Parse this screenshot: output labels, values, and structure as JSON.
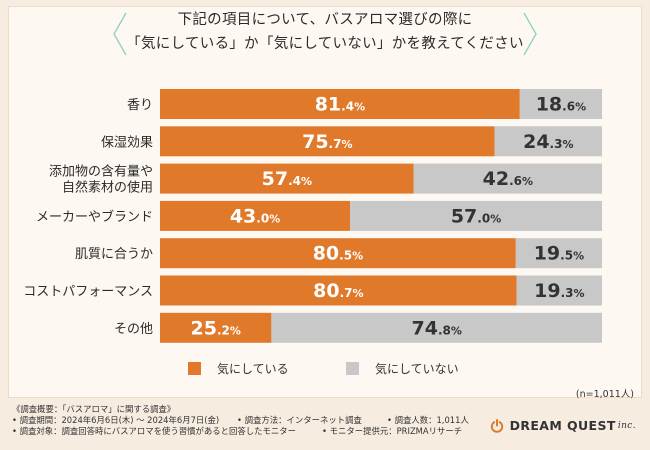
{
  "title": {
    "line1": "下記の項目について、バスアロマ選びの際に",
    "line2": "「気にしている」か「気にしていない」かを教えてください"
  },
  "chart_data": {
    "type": "bar",
    "orientation": "horizontal",
    "stacked": true,
    "unit": "%",
    "categories": [
      [
        "香り"
      ],
      [
        "保湿効果"
      ],
      [
        "添加物の含有量や",
        "自然素材の使用"
      ],
      [
        "メーカーやブランド"
      ],
      [
        "肌質に合うか"
      ],
      [
        "コストパフォーマンス"
      ],
      [
        "その他"
      ]
    ],
    "series": [
      {
        "name": "気にしている",
        "color": "#e07a2a",
        "values": [
          81.4,
          75.7,
          57.4,
          43.0,
          80.5,
          80.7,
          25.2
        ],
        "labels": [
          "81.4",
          "75.7",
          "57.4",
          "43.0",
          "80.5",
          "80.7",
          "25.2"
        ]
      },
      {
        "name": "気にしていない",
        "color": "#c8c8c8",
        "values": [
          18.6,
          24.3,
          42.6,
          57.0,
          19.5,
          19.3,
          74.8
        ],
        "labels": [
          "18.6",
          "24.3",
          "42.6",
          "57.0",
          "19.5",
          "19.3",
          "74.8"
        ]
      }
    ],
    "xlim": [
      0,
      100
    ]
  },
  "legend": {
    "item1": "気にしている",
    "item2": "気にしていない",
    "color1": "#e07a2a",
    "color2": "#c8c8c8"
  },
  "sample_size": "(n=1,011人)",
  "footer": {
    "heading": "《調査概要：「バスアロマ」に関する調査》",
    "period": "• 調査期間：2024年6月6日(木) ～ 2024年6月7日(金)",
    "method": "• 調査方法：インターネット調査",
    "respondents": "• 調査人数：1,011人",
    "target": "• 調査対象：調査回答時にバスアロマを使う習慣があると回答したモニター",
    "provider": "• モニター提供元：PRIZMAリサーチ"
  },
  "logo": {
    "name": "DREAM QUEST",
    "suffix": "inc."
  }
}
